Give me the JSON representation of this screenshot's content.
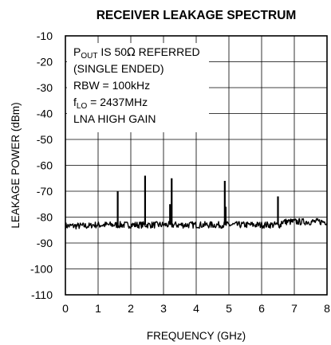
{
  "chart_data": {
    "type": "line",
    "title": "RECEIVER LEAKAGE SPECTRUM",
    "xlabel": "FREQUENCY (GHz)",
    "ylabel": "LEAKAGE POWER (dBm)",
    "xlim": [
      0,
      8
    ],
    "ylim": [
      -110,
      -10
    ],
    "xticks": [
      "0",
      "1",
      "2",
      "3",
      "4",
      "5",
      "6",
      "7",
      "8"
    ],
    "yticks": [
      "-10",
      "-20",
      "-30",
      "-40",
      "-50",
      "-60",
      "-70",
      "-80",
      "-90",
      "-100",
      "-110"
    ],
    "grid": true,
    "annotation": {
      "line1": {
        "p": "P",
        "sub": "OUT",
        "rest": " IS 50",
        "omega": "Ω",
        "tail": " REFERRED"
      },
      "line2": "(SINGLE ENDED)",
      "line3": "RBW = 100kHz",
      "line4": {
        "f": "f",
        "sub": "LO",
        "rest": " = 2437MHz"
      },
      "line5": "LNA HIGH GAIN"
    },
    "series": [
      {
        "noise_floor_dbm": -83,
        "spurs": [
          {
            "freq_ghz": 1.6,
            "dbm": -70
          },
          {
            "freq_ghz": 2.437,
            "dbm": -64
          },
          {
            "freq_ghz": 3.2,
            "dbm": -75
          },
          {
            "freq_ghz": 3.25,
            "dbm": -65
          },
          {
            "freq_ghz": 4.874,
            "dbm": -66
          },
          {
            "freq_ghz": 4.9,
            "dbm": -76
          },
          {
            "freq_ghz": 6.5,
            "dbm": -72
          }
        ]
      }
    ]
  }
}
